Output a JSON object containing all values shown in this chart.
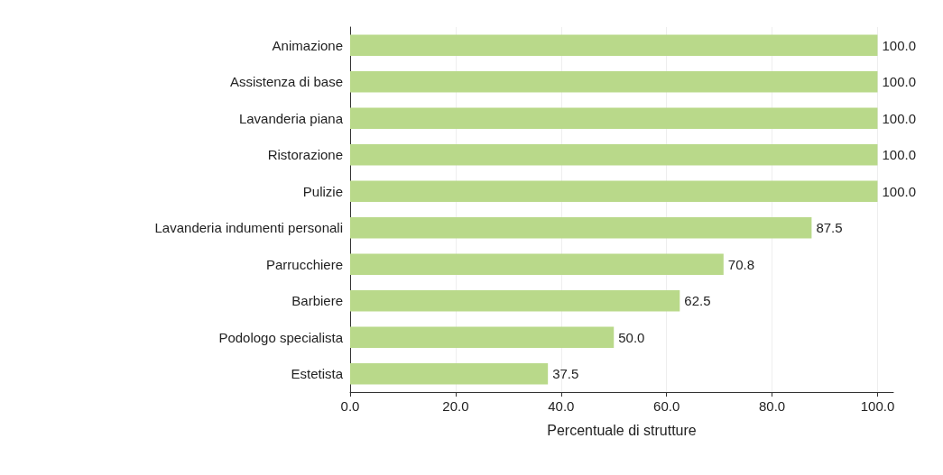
{
  "chart_data": {
    "type": "bar",
    "orientation": "horizontal",
    "xlabel": "Percentuale di strutture",
    "categories": [
      "Animazione",
      "Assistenza di base",
      "Lavanderia piana",
      "Ristorazione",
      "Pulizie",
      "Lavanderia indumenti personali",
      "Parrucchiere",
      "Barbiere",
      "Podologo specialista",
      "Estetista"
    ],
    "values": [
      100,
      100,
      100,
      100,
      100,
      87.5,
      70.8,
      62.5,
      50,
      37.5
    ],
    "value_labels": [
      "100.0",
      "100.0",
      "100.0",
      "100.0",
      "100.0",
      "87.5",
      "70.8",
      "62.5",
      "50.0",
      "37.5"
    ],
    "color": "#b9d98a",
    "xlim": [
      0,
      103
    ],
    "xticks": [
      {
        "value": 0,
        "label": "0.0"
      },
      {
        "value": 20,
        "label": "20.0"
      },
      {
        "value": 40,
        "label": "40.0"
      },
      {
        "value": 60,
        "label": "60.0"
      },
      {
        "value": 80,
        "label": "80.0"
      },
      {
        "value": 100,
        "label": "100.0"
      }
    ],
    "grid": "x"
  }
}
